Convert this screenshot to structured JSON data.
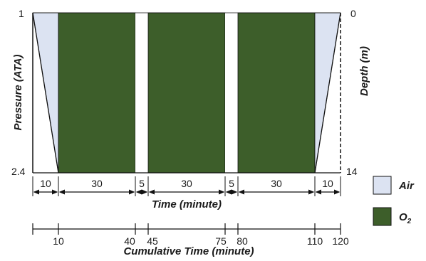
{
  "colors": {
    "air": "#dce3f2",
    "oxygen": "#3d5e2a",
    "line": "#111111",
    "text": "#1a1a1a"
  },
  "axes": {
    "left_label": "Pressure (ATA)",
    "right_label": "Depth (m)",
    "left_top": "1",
    "left_bottom": "2.4",
    "right_top": "0",
    "right_bottom": "14"
  },
  "profile": {
    "segments": [
      {
        "gas": "air",
        "kind": "descent",
        "duration": 10,
        "start": 0,
        "end": 10
      },
      {
        "gas": "oxygen",
        "kind": "hold",
        "duration": 30,
        "start": 10,
        "end": 40
      },
      {
        "gas": "air",
        "kind": "break",
        "duration": 5,
        "start": 40,
        "end": 45
      },
      {
        "gas": "oxygen",
        "kind": "hold",
        "duration": 30,
        "start": 45,
        "end": 75
      },
      {
        "gas": "air",
        "kind": "break",
        "duration": 5,
        "start": 75,
        "end": 80
      },
      {
        "gas": "oxygen",
        "kind": "hold",
        "duration": 30,
        "start": 80,
        "end": 110
      },
      {
        "gas": "air",
        "kind": "ascent",
        "duration": 10,
        "start": 110,
        "end": 120
      }
    ]
  },
  "time_axis": {
    "label": "Time (minute)",
    "durations": [
      "10",
      "30",
      "5",
      "30",
      "5",
      "30",
      "10"
    ]
  },
  "cumulative_axis": {
    "label": "Cumulative Time (minute)",
    "ticks": [
      "10",
      "40",
      "45",
      "75",
      "80",
      "110",
      "120"
    ]
  },
  "legend": {
    "air_label": "Air",
    "oxygen_label": "O",
    "oxygen_subscript": "2"
  }
}
